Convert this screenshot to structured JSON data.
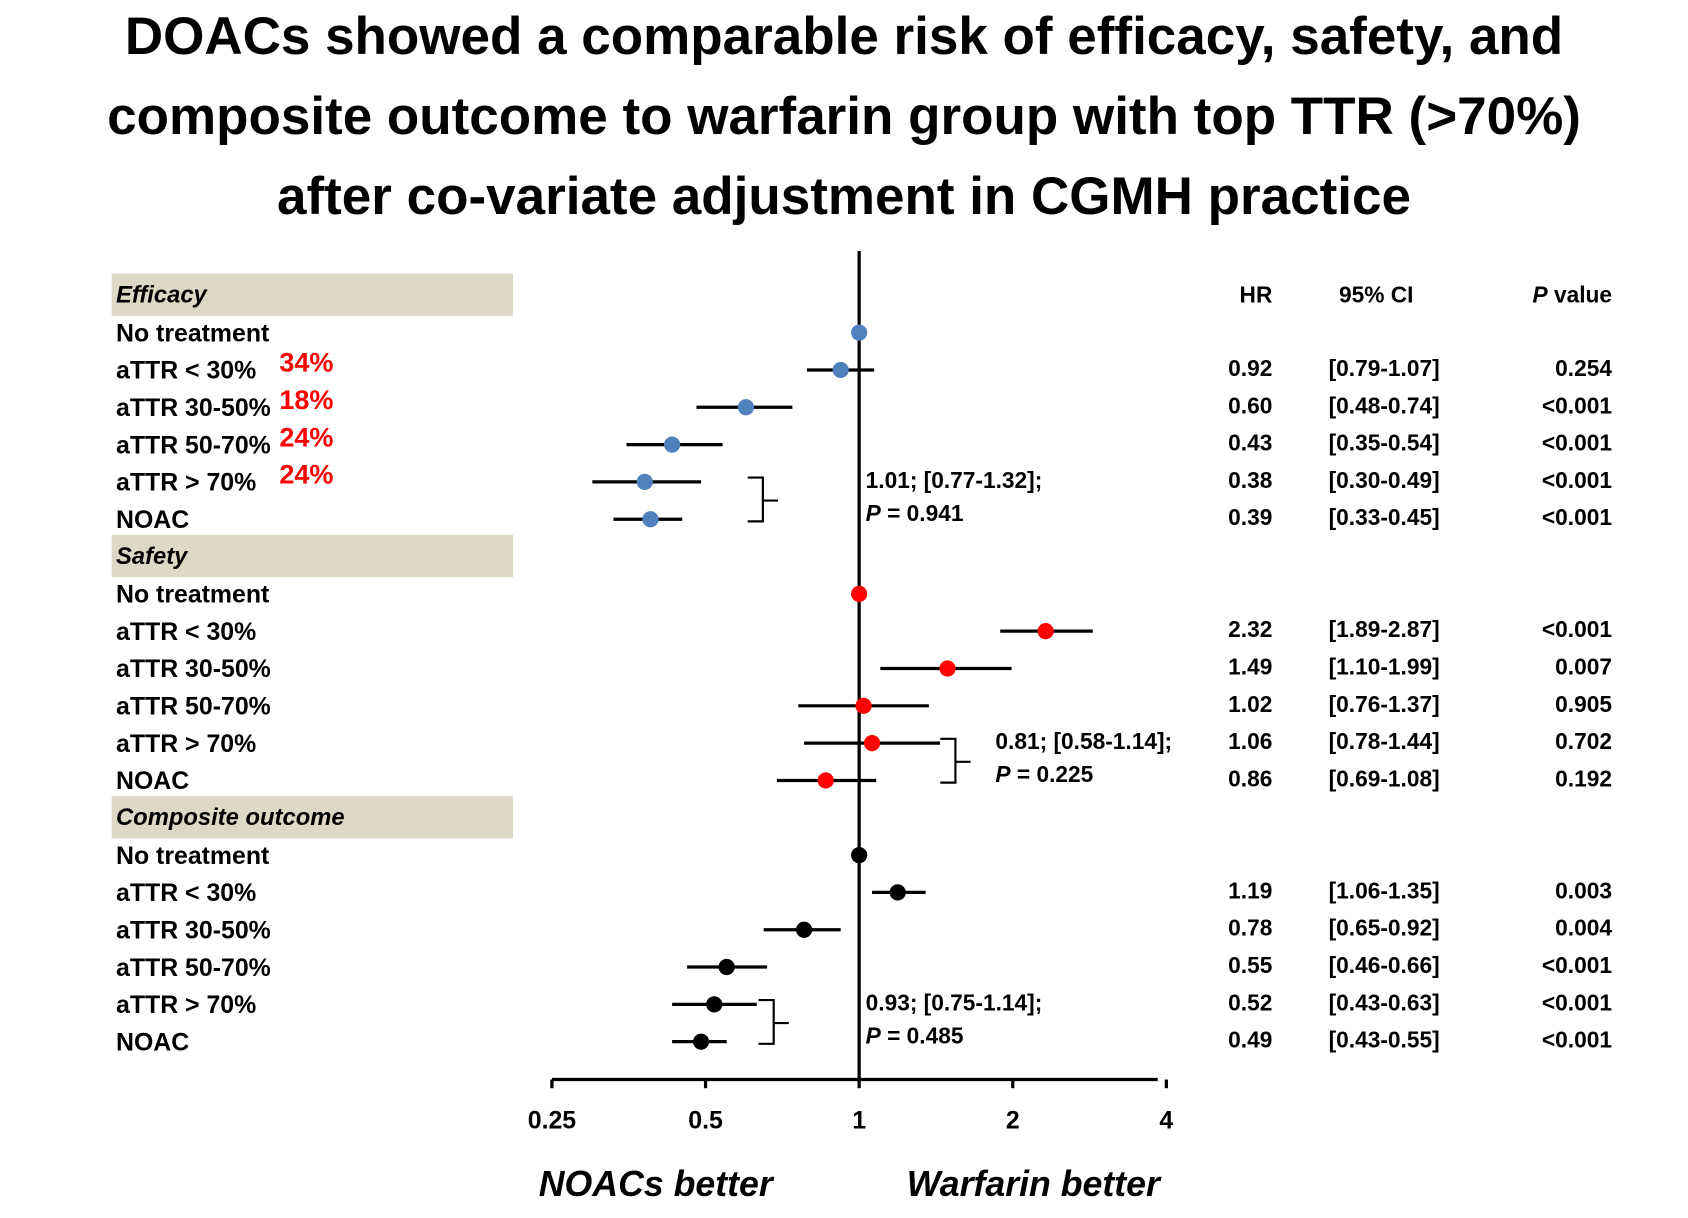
{
  "chart_data": {
    "type": "forest",
    "title": [
      "DOACs showed a comparable risk of efficacy, safety, and",
      "composite outcome to warfarin group with top TTR (>70%)",
      "after co-variate adjustment in CGMH practice"
    ],
    "log_x": true,
    "xlim": [
      0.25,
      4
    ],
    "xticks": [
      0.25,
      0.5,
      1,
      2,
      4
    ],
    "reference": 1,
    "x_label_left": "NOACs better",
    "x_label_right": "Warfarin better",
    "columns": {
      "hr": "HR",
      "ci": "95% CI",
      "p_symbol": "P",
      "p": "value"
    },
    "series": [
      {
        "name": "Efficacy",
        "color": "#4f81bd",
        "categories": [
          "No treatment",
          "aTTR < 30%",
          "aTTR 30-50%",
          "aTTR 50-70%",
          "aTTR > 70%",
          "NOAC"
        ],
        "values": [
          1,
          0.92,
          0.6,
          0.43,
          0.38,
          0.39
        ],
        "value_labels": [
          null,
          "0.92",
          "0.60",
          "0.43",
          "0.38",
          "0.39"
        ],
        "ci_low": [
          null,
          0.79,
          0.48,
          0.35,
          0.3,
          0.33
        ],
        "ci_high": [
          null,
          1.07,
          0.74,
          0.54,
          0.49,
          0.45
        ],
        "ci_labels": [
          null,
          "[0.79-1.07]",
          "[0.48-0.74]",
          "[0.35-0.54]",
          "[0.30-0.49]",
          "[0.33-0.45]"
        ],
        "p_values": [
          null,
          "0.254",
          "<0.001",
          "<0.001",
          "<0.001",
          "<0.001"
        ],
        "annotations": [
          null,
          "34%",
          "18%",
          "24%",
          "24%",
          null
        ],
        "comparison": {
          "text": "1.01; [0.77-1.32];",
          "p_symbol": "P",
          "p": "= 0.941"
        }
      },
      {
        "name": "Safety",
        "color": "#ff0000",
        "categories": [
          "No treatment",
          "aTTR < 30%",
          "aTTR 30-50%",
          "aTTR 50-70%",
          "aTTR > 70%",
          "NOAC"
        ],
        "values": [
          1,
          2.32,
          1.49,
          1.02,
          1.06,
          0.86
        ],
        "value_labels": [
          null,
          "2.32",
          "1.49",
          "1.02",
          "1.06",
          "0.86"
        ],
        "ci_low": [
          null,
          1.89,
          1.1,
          0.76,
          0.78,
          0.69
        ],
        "ci_high": [
          null,
          2.87,
          1.99,
          1.37,
          1.44,
          1.08
        ],
        "ci_labels": [
          null,
          "[1.89-2.87]",
          "[1.10-1.99]",
          "[0.76-1.37]",
          "[0.78-1.44]",
          "[0.69-1.08]"
        ],
        "p_values": [
          null,
          "<0.001",
          "0.007",
          "0.905",
          "0.702",
          "0.192"
        ],
        "comparison": {
          "text": "0.81; [0.58-1.14];",
          "p_symbol": "P",
          "p": "= 0.225"
        }
      },
      {
        "name": "Composite outcome",
        "color": "#000000",
        "categories": [
          "No treatment",
          "aTTR < 30%",
          "aTTR 30-50%",
          "aTTR 50-70%",
          "aTTR > 70%",
          "NOAC"
        ],
        "values": [
          1,
          1.19,
          0.78,
          0.55,
          0.52,
          0.49
        ],
        "value_labels": [
          null,
          "1.19",
          "0.78",
          "0.55",
          "0.52",
          "0.49"
        ],
        "ci_low": [
          null,
          1.06,
          0.65,
          0.46,
          0.43,
          0.43
        ],
        "ci_high": [
          null,
          1.35,
          0.92,
          0.66,
          0.63,
          0.55
        ],
        "ci_labels": [
          null,
          "[1.06-1.35]",
          "[0.65-0.92]",
          "[0.46-0.66]",
          "[0.43-0.63]",
          "[0.43-0.55]"
        ],
        "p_values": [
          null,
          "0.003",
          "0.004",
          "<0.001",
          "<0.001",
          "<0.001"
        ],
        "comparison": {
          "text": "0.93; [0.75-1.14];",
          "p_symbol": "P",
          "p": "= 0.485"
        }
      }
    ]
  }
}
